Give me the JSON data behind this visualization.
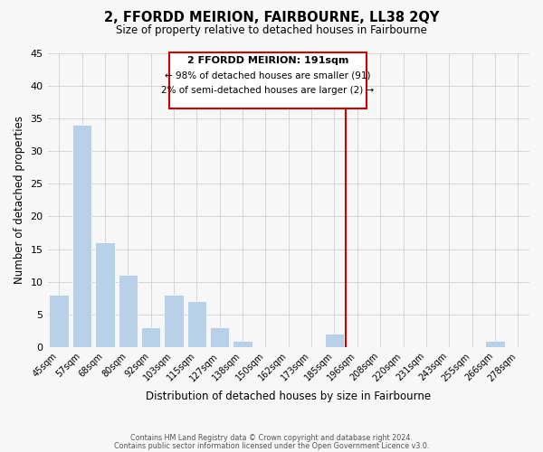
{
  "title": "2, FFORDD MEIRION, FAIRBOURNE, LL38 2QY",
  "subtitle": "Size of property relative to detached houses in Fairbourne",
  "xlabel": "Distribution of detached houses by size in Fairbourne",
  "ylabel": "Number of detached properties",
  "bar_color": "#b8d0e8",
  "grid_color": "#d0d0d0",
  "background_color": "#f7f7f7",
  "bin_labels": [
    "45sqm",
    "57sqm",
    "68sqm",
    "80sqm",
    "92sqm",
    "103sqm",
    "115sqm",
    "127sqm",
    "138sqm",
    "150sqm",
    "162sqm",
    "173sqm",
    "185sqm",
    "196sqm",
    "208sqm",
    "220sqm",
    "231sqm",
    "243sqm",
    "255sqm",
    "266sqm",
    "278sqm"
  ],
  "bar_heights": [
    8,
    34,
    16,
    11,
    3,
    8,
    7,
    3,
    1,
    0,
    0,
    0,
    2,
    0,
    0,
    0,
    0,
    0,
    0,
    1,
    0
  ],
  "ylim": [
    0,
    45
  ],
  "yticks": [
    0,
    5,
    10,
    15,
    20,
    25,
    30,
    35,
    40,
    45
  ],
  "property_line_x": 12.5,
  "property_line_color": "#cc0000",
  "annotation_title": "2 FFORDD MEIRION: 191sqm",
  "annotation_line1": "← 98% of detached houses are smaller (91)",
  "annotation_line2": "2% of semi-detached houses are larger (2) →",
  "annotation_box_color": "#cc0000",
  "footer_line1": "Contains HM Land Registry data © Crown copyright and database right 2024.",
  "footer_line2": "Contains public sector information licensed under the Open Government Licence v3.0."
}
